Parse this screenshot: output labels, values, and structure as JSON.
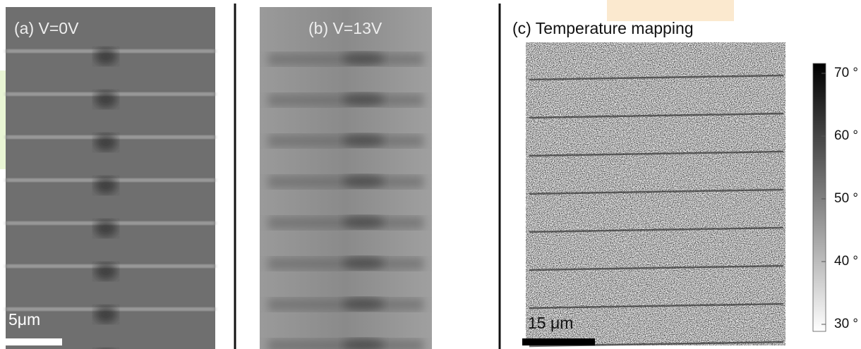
{
  "panels": [
    {
      "label": "(a) V=0V",
      "scale_bar": "5μm"
    },
    {
      "label": "(b) V=13V"
    },
    {
      "label": "(c) Temperature mapping",
      "scale_bar": "15 μm"
    }
  ],
  "colorbar": {
    "ticks": [
      {
        "value": 70,
        "label": "70 °"
      },
      {
        "value": 60,
        "label": "60 °"
      },
      {
        "value": 50,
        "label": "50 °"
      },
      {
        "value": 40,
        "label": "40 °"
      },
      {
        "value": 30,
        "label": "30 °"
      }
    ]
  }
}
